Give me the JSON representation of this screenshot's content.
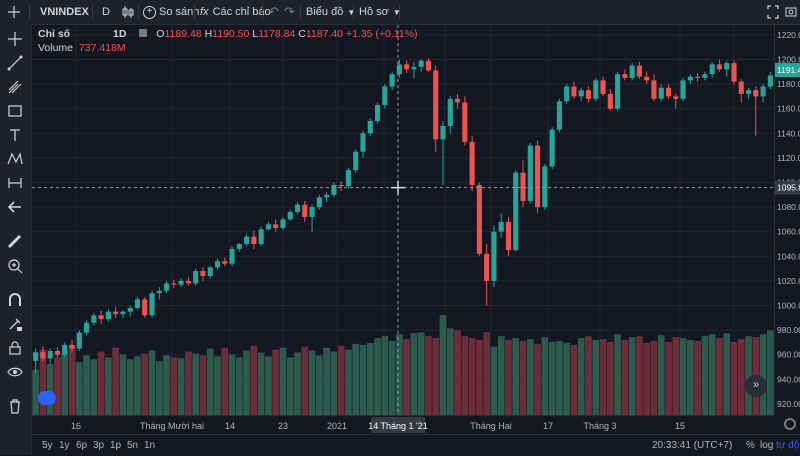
{
  "toolbar": {
    "symbol": "VNINDEX",
    "interval": "D",
    "compare_label": "So sánh",
    "indicators_label": "Các chỉ báo",
    "chart_label": "Biểu đồ",
    "profile_label": "Hồ sơ"
  },
  "legend": {
    "series_name": "Chỉ số",
    "interval": "1D",
    "o_label": "O",
    "o_value": "1189.48",
    "h_label": "H",
    "h_value": "1190.50",
    "l_label": "L",
    "l_value": "1178.84",
    "c_label": "C",
    "c_value": "1187.40",
    "change": "+1.35 (+0.11%)",
    "volume_label": "Volume",
    "volume_value": "737.418M"
  },
  "price_axis": {
    "ticks": [
      "1220.00",
      "1200.00",
      "1180.00",
      "1160.00",
      "1140.00",
      "1120.00",
      "1100.00",
      "1080.00",
      "1060.00",
      "1040.00",
      "1020.00",
      "1000.00",
      "980.00",
      "960.00",
      "940.00",
      "920.00"
    ],
    "last_price_label": "1191.4",
    "crosshair_price_label": "1095.8"
  },
  "time_axis": {
    "labels": [
      "16",
      "Tháng Mười hai",
      "14",
      "23",
      "2021",
      "Tháng Hai",
      "17",
      "Tháng 3",
      "15"
    ],
    "crosshair_label": "14 Tháng 1 '21"
  },
  "bottom_bar": {
    "ranges": [
      "5y",
      "1y",
      "6p",
      "3p",
      "1p",
      "5n",
      "1n"
    ],
    "clock": "20:33:41 (UTC+7)",
    "percent": "%",
    "log": "log",
    "auto": "tự động"
  },
  "colors": {
    "up": "#26a69a",
    "down": "#ef5350",
    "vol_up": "#2c5a4c",
    "vol_down": "#6e2d3a",
    "last_price_bg": "#26a69a",
    "background": "#131722",
    "grid": "#1f2430"
  },
  "chart_data": {
    "type": "candlestick",
    "y_range": [
      911,
      1228
    ],
    "candles": [
      {
        "o": 955,
        "h": 965,
        "l": 945,
        "c": 962
      },
      {
        "o": 962,
        "h": 967,
        "l": 955,
        "c": 957
      },
      {
        "o": 957,
        "h": 965,
        "l": 952,
        "c": 963
      },
      {
        "o": 963,
        "h": 966,
        "l": 958,
        "c": 960
      },
      {
        "o": 960,
        "h": 970,
        "l": 958,
        "c": 968
      },
      {
        "o": 968,
        "h": 972,
        "l": 962,
        "c": 965
      },
      {
        "o": 965,
        "h": 980,
        "l": 963,
        "c": 978
      },
      {
        "o": 978,
        "h": 988,
        "l": 976,
        "c": 986
      },
      {
        "o": 986,
        "h": 994,
        "l": 984,
        "c": 992
      },
      {
        "o": 992,
        "h": 996,
        "l": 985,
        "c": 989
      },
      {
        "o": 989,
        "h": 997,
        "l": 987,
        "c": 995
      },
      {
        "o": 995,
        "h": 999,
        "l": 990,
        "c": 993
      },
      {
        "o": 993,
        "h": 996,
        "l": 990,
        "c": 995
      },
      {
        "o": 995,
        "h": 1000,
        "l": 991,
        "c": 998
      },
      {
        "o": 998,
        "h": 1007,
        "l": 997,
        "c": 1005
      },
      {
        "o": 1005,
        "h": 1007,
        "l": 990,
        "c": 992
      },
      {
        "o": 992,
        "h": 1012,
        "l": 990,
        "c": 1010
      },
      {
        "o": 1010,
        "h": 1015,
        "l": 1005,
        "c": 1012
      },
      {
        "o": 1012,
        "h": 1020,
        "l": 1010,
        "c": 1018
      },
      {
        "o": 1018,
        "h": 1021,
        "l": 1014,
        "c": 1017
      },
      {
        "o": 1017,
        "h": 1022,
        "l": 1015,
        "c": 1020
      },
      {
        "o": 1020,
        "h": 1023,
        "l": 1016,
        "c": 1018
      },
      {
        "o": 1018,
        "h": 1030,
        "l": 1016,
        "c": 1028
      },
      {
        "o": 1028,
        "h": 1031,
        "l": 1020,
        "c": 1024
      },
      {
        "o": 1024,
        "h": 1032,
        "l": 1022,
        "c": 1031
      },
      {
        "o": 1031,
        "h": 1038,
        "l": 1029,
        "c": 1036
      },
      {
        "o": 1036,
        "h": 1039,
        "l": 1032,
        "c": 1034
      },
      {
        "o": 1034,
        "h": 1048,
        "l": 1032,
        "c": 1046
      },
      {
        "o": 1046,
        "h": 1051,
        "l": 1044,
        "c": 1050
      },
      {
        "o": 1050,
        "h": 1058,
        "l": 1048,
        "c": 1056
      },
      {
        "o": 1056,
        "h": 1061,
        "l": 1046,
        "c": 1050
      },
      {
        "o": 1050,
        "h": 1064,
        "l": 1048,
        "c": 1062
      },
      {
        "o": 1062,
        "h": 1068,
        "l": 1061,
        "c": 1066
      },
      {
        "o": 1066,
        "h": 1070,
        "l": 1060,
        "c": 1063
      },
      {
        "o": 1063,
        "h": 1072,
        "l": 1061,
        "c": 1070
      },
      {
        "o": 1070,
        "h": 1078,
        "l": 1069,
        "c": 1076
      },
      {
        "o": 1076,
        "h": 1084,
        "l": 1074,
        "c": 1082
      },
      {
        "o": 1082,
        "h": 1085,
        "l": 1068,
        "c": 1072
      },
      {
        "o": 1072,
        "h": 1082,
        "l": 1060,
        "c": 1080
      },
      {
        "o": 1080,
        "h": 1090,
        "l": 1078,
        "c": 1088
      },
      {
        "o": 1088,
        "h": 1092,
        "l": 1084,
        "c": 1090
      },
      {
        "o": 1090,
        "h": 1100,
        "l": 1088,
        "c": 1098
      },
      {
        "o": 1098,
        "h": 1101,
        "l": 1093,
        "c": 1097
      },
      {
        "o": 1097,
        "h": 1112,
        "l": 1095,
        "c": 1110
      },
      {
        "o": 1110,
        "h": 1127,
        "l": 1108,
        "c": 1125
      },
      {
        "o": 1125,
        "h": 1142,
        "l": 1120,
        "c": 1140
      },
      {
        "o": 1140,
        "h": 1152,
        "l": 1138,
        "c": 1150
      },
      {
        "o": 1150,
        "h": 1165,
        "l": 1148,
        "c": 1163
      },
      {
        "o": 1163,
        "h": 1180,
        "l": 1160,
        "c": 1178
      },
      {
        "o": 1178,
        "h": 1190,
        "l": 1175,
        "c": 1188
      },
      {
        "o": 1188,
        "h": 1200,
        "l": 1185,
        "c": 1196
      },
      {
        "o": 1196,
        "h": 1199,
        "l": 1189,
        "c": 1192
      },
      {
        "o": 1192,
        "h": 1198,
        "l": 1185,
        "c": 1194
      },
      {
        "o": 1194,
        "h": 1200,
        "l": 1190,
        "c": 1199
      },
      {
        "o": 1199,
        "h": 1201,
        "l": 1190,
        "c": 1191
      },
      {
        "o": 1191,
        "h": 1195,
        "l": 1125,
        "c": 1135
      },
      {
        "o": 1135,
        "h": 1150,
        "l": 1098,
        "c": 1146
      },
      {
        "o": 1146,
        "h": 1170,
        "l": 1140,
        "c": 1168
      },
      {
        "o": 1168,
        "h": 1172,
        "l": 1160,
        "c": 1165
      },
      {
        "o": 1165,
        "h": 1170,
        "l": 1130,
        "c": 1133
      },
      {
        "o": 1133,
        "h": 1138,
        "l": 1093,
        "c": 1098
      },
      {
        "o": 1098,
        "h": 1100,
        "l": 1040,
        "c": 1042
      },
      {
        "o": 1042,
        "h": 1050,
        "l": 1000,
        "c": 1020
      },
      {
        "o": 1020,
        "h": 1065,
        "l": 1015,
        "c": 1060
      },
      {
        "o": 1060,
        "h": 1075,
        "l": 1055,
        "c": 1068
      },
      {
        "o": 1068,
        "h": 1072,
        "l": 1040,
        "c": 1045
      },
      {
        "o": 1045,
        "h": 1110,
        "l": 1044,
        "c": 1108
      },
      {
        "o": 1108,
        "h": 1118,
        "l": 1080,
        "c": 1085
      },
      {
        "o": 1085,
        "h": 1132,
        "l": 1083,
        "c": 1130
      },
      {
        "o": 1130,
        "h": 1134,
        "l": 1075,
        "c": 1080
      },
      {
        "o": 1080,
        "h": 1115,
        "l": 1078,
        "c": 1113
      },
      {
        "o": 1113,
        "h": 1145,
        "l": 1111,
        "c": 1143
      },
      {
        "o": 1143,
        "h": 1168,
        "l": 1141,
        "c": 1166
      },
      {
        "o": 1166,
        "h": 1180,
        "l": 1164,
        "c": 1178
      },
      {
        "o": 1178,
        "h": 1182,
        "l": 1168,
        "c": 1170
      },
      {
        "o": 1170,
        "h": 1177,
        "l": 1166,
        "c": 1175
      },
      {
        "o": 1175,
        "h": 1178,
        "l": 1165,
        "c": 1168
      },
      {
        "o": 1168,
        "h": 1185,
        "l": 1166,
        "c": 1183
      },
      {
        "o": 1183,
        "h": 1186,
        "l": 1170,
        "c": 1172
      },
      {
        "o": 1172,
        "h": 1176,
        "l": 1158,
        "c": 1160
      },
      {
        "o": 1160,
        "h": 1190,
        "l": 1158,
        "c": 1188
      },
      {
        "o": 1188,
        "h": 1192,
        "l": 1183,
        "c": 1185
      },
      {
        "o": 1185,
        "h": 1197,
        "l": 1183,
        "c": 1195
      },
      {
        "o": 1195,
        "h": 1198,
        "l": 1184,
        "c": 1186
      },
      {
        "o": 1186,
        "h": 1190,
        "l": 1180,
        "c": 1183
      },
      {
        "o": 1183,
        "h": 1188,
        "l": 1166,
        "c": 1168
      },
      {
        "o": 1168,
        "h": 1180,
        "l": 1166,
        "c": 1177
      },
      {
        "o": 1177,
        "h": 1180,
        "l": 1168,
        "c": 1170
      },
      {
        "o": 1170,
        "h": 1172,
        "l": 1160,
        "c": 1168
      },
      {
        "o": 1168,
        "h": 1185,
        "l": 1166,
        "c": 1183
      },
      {
        "o": 1183,
        "h": 1188,
        "l": 1180,
        "c": 1186
      },
      {
        "o": 1186,
        "h": 1189,
        "l": 1182,
        "c": 1185
      },
      {
        "o": 1185,
        "h": 1190,
        "l": 1183,
        "c": 1188
      },
      {
        "o": 1188,
        "h": 1198,
        "l": 1185,
        "c": 1196
      },
      {
        "o": 1196,
        "h": 1200,
        "l": 1190,
        "c": 1192
      },
      {
        "o": 1192,
        "h": 1199,
        "l": 1186,
        "c": 1197
      },
      {
        "o": 1197,
        "h": 1199,
        "l": 1180,
        "c": 1182
      },
      {
        "o": 1182,
        "h": 1184,
        "l": 1165,
        "c": 1172
      },
      {
        "o": 1172,
        "h": 1177,
        "l": 1168,
        "c": 1175
      },
      {
        "o": 1175,
        "h": 1178,
        "l": 1138,
        "c": 1170
      },
      {
        "o": 1170,
        "h": 1180,
        "l": 1165,
        "c": 1178
      },
      {
        "o": 1178,
        "h": 1190,
        "l": 1176,
        "c": 1187
      }
    ],
    "volume_range": [
      0,
      104
    ],
    "volumes": [
      47,
      68,
      53,
      60,
      65,
      72,
      55,
      62,
      58,
      66,
      60,
      70,
      63,
      58,
      61,
      64,
      67,
      56,
      62,
      60,
      59,
      66,
      64,
      62,
      69,
      61,
      70,
      63,
      60,
      67,
      72,
      65,
      61,
      68,
      70,
      60,
      65,
      71,
      67,
      62,
      70,
      66,
      72,
      68,
      74,
      73,
      75,
      80,
      82,
      77,
      84,
      79,
      85,
      86,
      82,
      80,
      104,
      90,
      88,
      82,
      80,
      78,
      86,
      71,
      82,
      78,
      80,
      77,
      79,
      74,
      81,
      76,
      77,
      75,
      73,
      80,
      82,
      78,
      79,
      76,
      84,
      78,
      81,
      82,
      75,
      77,
      83,
      76,
      81,
      80,
      78,
      77,
      82,
      84,
      80,
      85,
      76,
      79,
      82,
      81,
      84,
      88
    ]
  }
}
